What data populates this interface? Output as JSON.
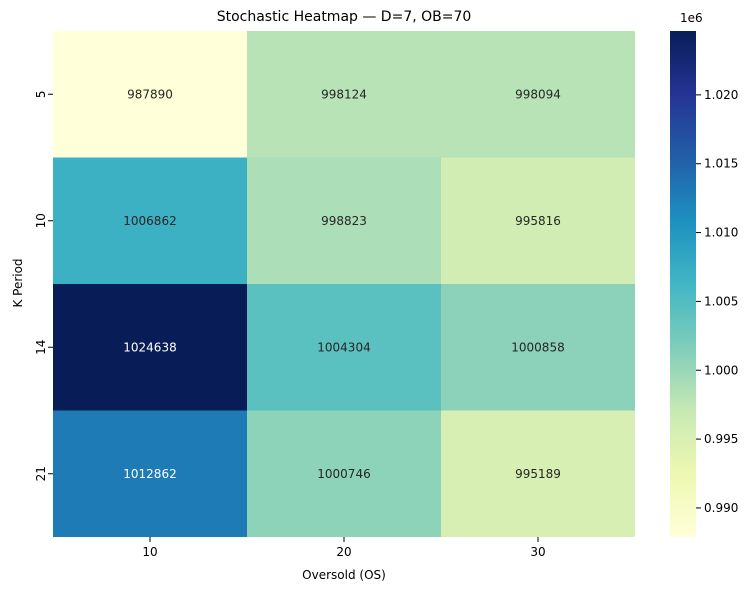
{
  "chart_data": {
    "type": "heatmap",
    "title": "Stochastic Heatmap — D=7, OB=70",
    "xlabel": "Oversold (OS)",
    "ylabel": "K Period",
    "x_categories": [
      "10",
      "20",
      "30"
    ],
    "y_categories": [
      "5",
      "10",
      "14",
      "21"
    ],
    "values": [
      [
        987890,
        998124,
        998094
      ],
      [
        1006862,
        998823,
        995816
      ],
      [
        1024638,
        1004304,
        1000858
      ],
      [
        1012862,
        1000746,
        995189
      ]
    ],
    "value_range": [
      987890,
      1024638
    ],
    "colormap": "YlGnBu",
    "colorbar": {
      "ticks": [
        "0.990",
        "0.995",
        "1.000",
        "1.005",
        "1.010",
        "1.015",
        "1.020"
      ],
      "tick_values": [
        0.99,
        0.995,
        1.0,
        1.005,
        1.01,
        1.015,
        1.02
      ],
      "scale": 1000000,
      "offset_label": "1e6"
    },
    "text_colors": {
      "dark": "#262626",
      "light": "#ffffff"
    }
  }
}
